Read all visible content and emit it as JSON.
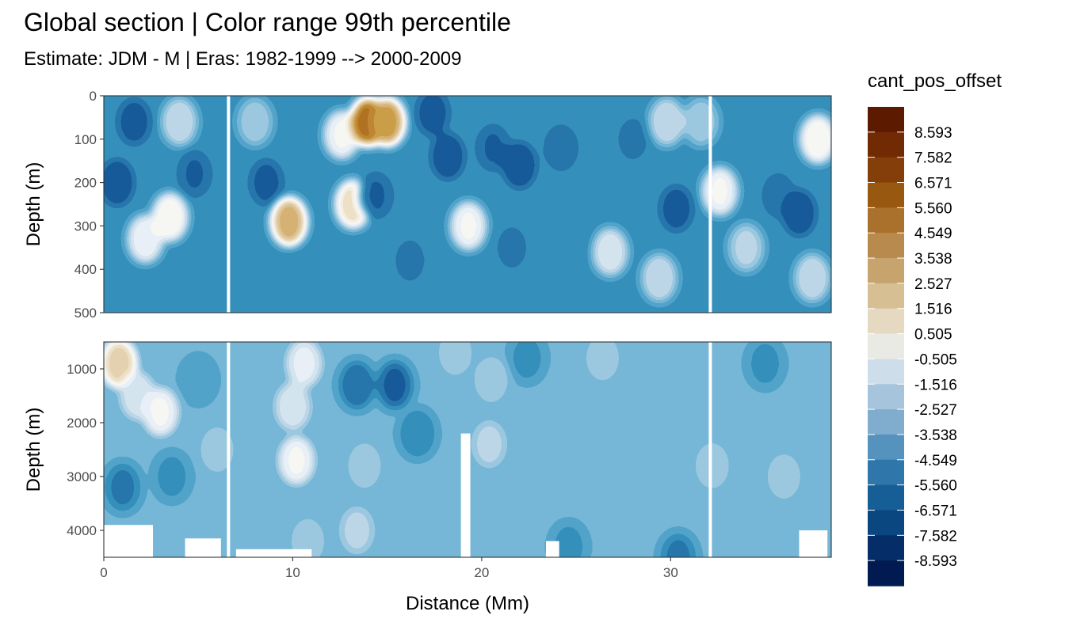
{
  "title": "Global section | Color range 99th percentile",
  "subtitle": "Estimate: JDM - M | Eras: 1982-1999 --> 2000-2009",
  "chart_data": {
    "type": "heatmap",
    "xlabel": "Distance (Mm)",
    "ylabel": "Depth (m)",
    "xlim": [
      0,
      38.5
    ],
    "x_ticks": [
      "0",
      "10",
      "20",
      "30"
    ],
    "panels": [
      {
        "name": "upper",
        "ylim": [
          0,
          500
        ],
        "y_ticks": [
          "0",
          "100",
          "200",
          "300",
          "400",
          "500"
        ]
      },
      {
        "name": "lower",
        "ylim": [
          500,
          4500
        ],
        "y_ticks": [
          "1000",
          "2000",
          "3000",
          "4000"
        ]
      }
    ],
    "gaps_x": [
      6.6,
      32.1
    ],
    "legend": {
      "title": "cant_pos_offset",
      "placement": "right",
      "breaks": [
        "8.593",
        "7.582",
        "6.571",
        "5.560",
        "4.549",
        "3.538",
        "2.527",
        "1.516",
        "0.505",
        "-0.505",
        "-1.516",
        "-2.527",
        "-3.538",
        "-4.549",
        "-5.560",
        "-6.571",
        "-7.582",
        "-8.593"
      ],
      "colors": [
        "#5c1a00",
        "#702b04",
        "#843e09",
        "#985810",
        "#a9712c",
        "#b88a4d",
        "#c7a46e",
        "#d6bf93",
        "#e6d9c2",
        "#eaeae4",
        "#cdddea",
        "#a6c5dc",
        "#80acce",
        "#5592bd",
        "#2f77ab",
        "#165e96",
        "#0a467f",
        "#052e68",
        "#021a52"
      ]
    },
    "upper_blobs": [
      {
        "x": 0.7,
        "y": 200,
        "v": -7.0
      },
      {
        "x": 1.6,
        "y": 60,
        "v": -5.5
      },
      {
        "x": 2.2,
        "y": 330,
        "v": 3.8
      },
      {
        "x": 3.5,
        "y": 280,
        "v": 4.5
      },
      {
        "x": 4.0,
        "y": 60,
        "v": 2.5
      },
      {
        "x": 4.8,
        "y": 180,
        "v": -4.5
      },
      {
        "x": 5.6,
        "y": 420,
        "v": -1.8
      },
      {
        "x": 8.0,
        "y": 60,
        "v": 1.5
      },
      {
        "x": 8.6,
        "y": 200,
        "v": -5.0
      },
      {
        "x": 9.8,
        "y": 290,
        "v": 7.0
      },
      {
        "x": 10.5,
        "y": 420,
        "v": -2.5
      },
      {
        "x": 12.6,
        "y": 90,
        "v": 4.0
      },
      {
        "x": 13.2,
        "y": 250,
        "v": 5.5
      },
      {
        "x": 14.0,
        "y": 60,
        "v": 8.5
      },
      {
        "x": 15.0,
        "y": 60,
        "v": 7.5
      },
      {
        "x": 14.4,
        "y": 230,
        "v": -4.5
      },
      {
        "x": 16.2,
        "y": 380,
        "v": -3.0
      },
      {
        "x": 17.4,
        "y": 40,
        "v": -5.5
      },
      {
        "x": 18.2,
        "y": 140,
        "v": -6.5
      },
      {
        "x": 19.3,
        "y": 300,
        "v": 4.0
      },
      {
        "x": 20.6,
        "y": 120,
        "v": -4.5
      },
      {
        "x": 22.0,
        "y": 160,
        "v": -7.0
      },
      {
        "x": 21.6,
        "y": 350,
        "v": -3.0
      },
      {
        "x": 24.2,
        "y": 120,
        "v": -4.0
      },
      {
        "x": 25.0,
        "y": 340,
        "v": -2.0
      },
      {
        "x": 26.8,
        "y": 360,
        "v": 3.0
      },
      {
        "x": 28.0,
        "y": 100,
        "v": -3.0
      },
      {
        "x": 29.4,
        "y": 420,
        "v": 2.5
      },
      {
        "x": 29.8,
        "y": 60,
        "v": 2.5
      },
      {
        "x": 30.3,
        "y": 260,
        "v": -5.5
      },
      {
        "x": 31.6,
        "y": 60,
        "v": 1.5
      },
      {
        "x": 32.6,
        "y": 220,
        "v": 4.0
      },
      {
        "x": 34.0,
        "y": 350,
        "v": 2.0
      },
      {
        "x": 35.7,
        "y": 230,
        "v": -3.5
      },
      {
        "x": 36.8,
        "y": 270,
        "v": -6.5
      },
      {
        "x": 37.8,
        "y": 100,
        "v": 4.5
      },
      {
        "x": 37.5,
        "y": 420,
        "v": 2.5
      }
    ],
    "lower_blobs": [
      {
        "x": 0.8,
        "y": 900,
        "v": 6.0
      },
      {
        "x": 1.8,
        "y": 1500,
        "v": 3.0
      },
      {
        "x": 3.0,
        "y": 1800,
        "v": 4.0
      },
      {
        "x": 1.0,
        "y": 3200,
        "v": -3.0
      },
      {
        "x": 3.6,
        "y": 3000,
        "v": -1.6
      },
      {
        "x": 5.0,
        "y": 1200,
        "v": -1.0
      },
      {
        "x": 6.0,
        "y": 2500,
        "v": 1.5
      },
      {
        "x": 10.2,
        "y": 2700,
        "v": 4.0
      },
      {
        "x": 10.0,
        "y": 1700,
        "v": 3.0
      },
      {
        "x": 10.6,
        "y": 900,
        "v": 3.5
      },
      {
        "x": 13.4,
        "y": 1300,
        "v": -4.0
      },
      {
        "x": 15.4,
        "y": 1300,
        "v": -5.0
      },
      {
        "x": 16.6,
        "y": 2200,
        "v": -2.5
      },
      {
        "x": 13.8,
        "y": 2800,
        "v": 1.5
      },
      {
        "x": 13.4,
        "y": 4000,
        "v": 2.0
      },
      {
        "x": 18.6,
        "y": 700,
        "v": 1.5
      },
      {
        "x": 20.5,
        "y": 1200,
        "v": 1.6
      },
      {
        "x": 20.4,
        "y": 2400,
        "v": 2.0
      },
      {
        "x": 22.4,
        "y": 800,
        "v": -1.6
      },
      {
        "x": 26.4,
        "y": 800,
        "v": 1.5
      },
      {
        "x": 28.8,
        "y": 1400,
        "v": 0.0
      },
      {
        "x": 32.2,
        "y": 2800,
        "v": 1.6
      },
      {
        "x": 36.0,
        "y": 3000,
        "v": 1.5
      },
      {
        "x": 35.0,
        "y": 900,
        "v": -1.6
      },
      {
        "x": 24.6,
        "y": 4300,
        "v": -1.6
      },
      {
        "x": 30.4,
        "y": 4500,
        "v": -3.0
      },
      {
        "x": 10.8,
        "y": 4200,
        "v": 1.5
      }
    ],
    "lower_voids": [
      {
        "x0": 0.0,
        "x1": 2.6,
        "y0": 3900,
        "y1": 4500
      },
      {
        "x0": 4.3,
        "x1": 6.2,
        "y0": 4150,
        "y1": 4500
      },
      {
        "x0": 7.0,
        "x1": 11.0,
        "y0": 4350,
        "y1": 4500
      },
      {
        "x0": 18.9,
        "x1": 19.4,
        "y0": 2200,
        "y1": 4500
      },
      {
        "x0": 23.4,
        "x1": 24.1,
        "y0": 4200,
        "y1": 4500
      },
      {
        "x0": 36.8,
        "x1": 38.3,
        "y0": 4000,
        "y1": 4500
      }
    ]
  }
}
